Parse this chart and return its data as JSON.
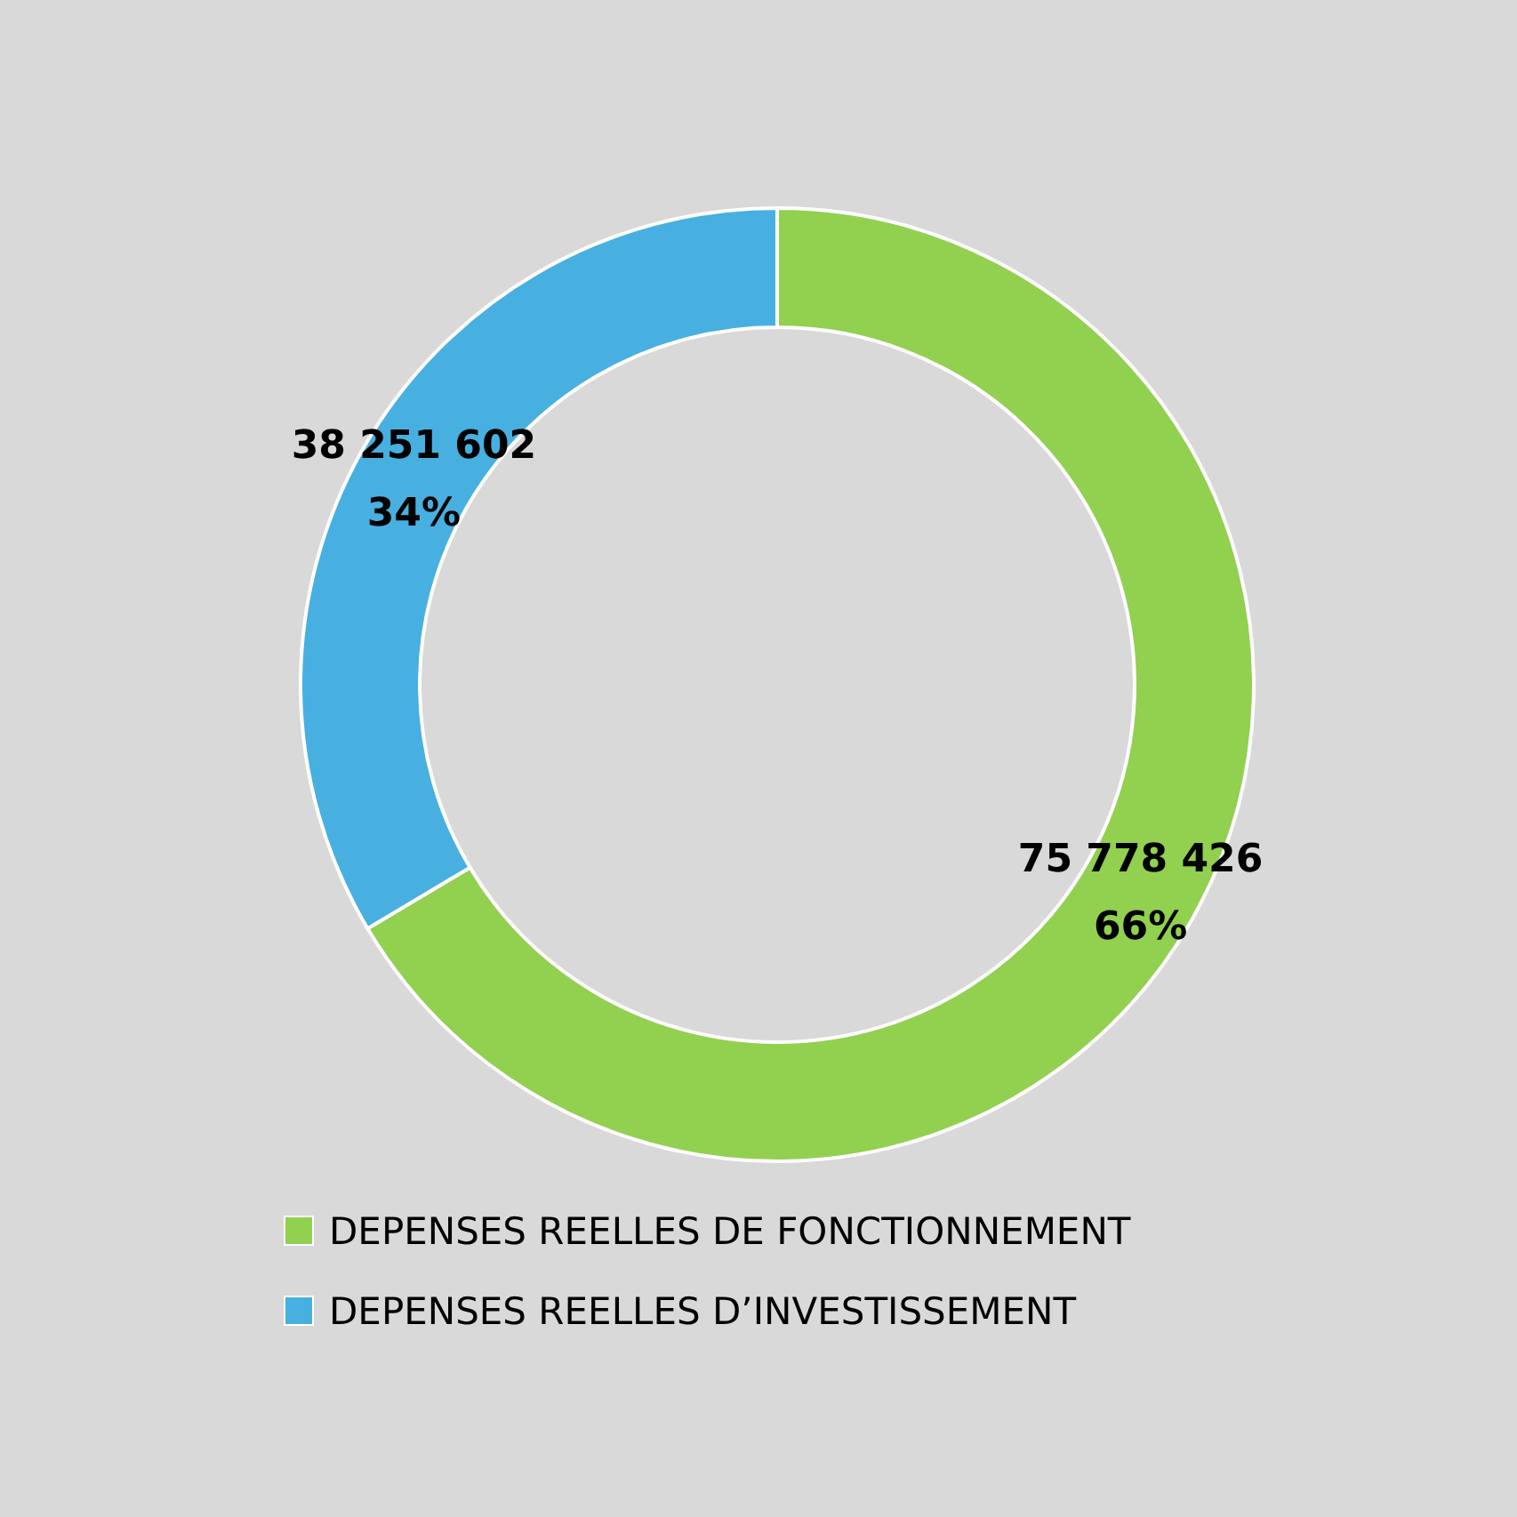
{
  "chart_data": {
    "type": "donut",
    "categories": [
      "DEPENSES REELLES DE FONCTIONNEMENT",
      "DEPENSES REELLES D’INVESTISSEMENT"
    ],
    "values": [
      75778426,
      38251602
    ],
    "colors": [
      "#92d050",
      "#47b0e0"
    ],
    "value_labels": [
      "75 778 426\n66%",
      "38 251 602\n34%"
    ],
    "legend": "bottom"
  }
}
